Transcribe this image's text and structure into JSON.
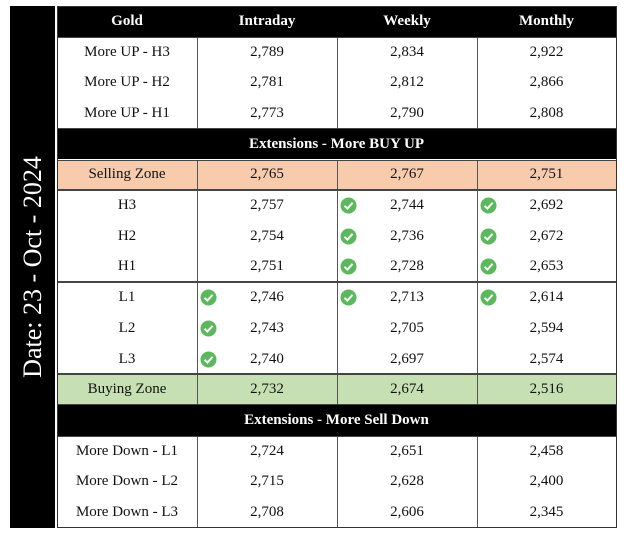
{
  "side_label": "Date: 23 - Oct - 2024",
  "header": [
    "Gold",
    "Intraday",
    "Weekly",
    "Monthly"
  ],
  "blocks": [
    {
      "rows": [
        {
          "label": "More UP - H3",
          "values": [
            "2,789",
            "2,834",
            "2,922"
          ],
          "checks": [
            false,
            false,
            false
          ]
        },
        {
          "label": "More UP - H2",
          "values": [
            "2,781",
            "2,812",
            "2,866"
          ],
          "checks": [
            false,
            false,
            false
          ]
        },
        {
          "label": "More UP - H1",
          "values": [
            "2,773",
            "2,790",
            "2,808"
          ],
          "checks": [
            false,
            false,
            false
          ]
        }
      ]
    },
    {
      "heading": "Extensions - More BUY UP"
    },
    {
      "rows": [
        {
          "label": "Selling Zone",
          "values": [
            "2,765",
            "2,767",
            "2,751"
          ],
          "checks": [
            false,
            false,
            false
          ],
          "color": "#f8cbad"
        }
      ]
    },
    {
      "rows": [
        {
          "label": "H3",
          "values": [
            "2,757",
            "2,744",
            "2,692"
          ],
          "checks": [
            false,
            true,
            true
          ]
        },
        {
          "label": "H2",
          "values": [
            "2,754",
            "2,736",
            "2,672"
          ],
          "checks": [
            false,
            true,
            true
          ]
        },
        {
          "label": "H1",
          "values": [
            "2,751",
            "2,728",
            "2,653"
          ],
          "checks": [
            false,
            true,
            true
          ]
        }
      ]
    },
    {
      "rows": [
        {
          "label": "L1",
          "values": [
            "2,746",
            "2,713",
            "2,614"
          ],
          "checks": [
            true,
            true,
            true
          ]
        },
        {
          "label": "L2",
          "values": [
            "2,743",
            "2,705",
            "2,594"
          ],
          "checks": [
            true,
            false,
            false
          ]
        },
        {
          "label": "L3",
          "values": [
            "2,740",
            "2,697",
            "2,574"
          ],
          "checks": [
            true,
            false,
            false
          ]
        }
      ]
    },
    {
      "rows": [
        {
          "label": "Buying Zone",
          "values": [
            "2,732",
            "2,674",
            "2,516"
          ],
          "checks": [
            false,
            false,
            false
          ],
          "color": "#c6e0b4"
        }
      ]
    },
    {
      "heading": "Extensions - More Sell Down"
    },
    {
      "rows": [
        {
          "label": "More Down - L1",
          "values": [
            "2,724",
            "2,651",
            "2,458"
          ],
          "checks": [
            false,
            false,
            false
          ]
        },
        {
          "label": "More Down - L2",
          "values": [
            "2,715",
            "2,628",
            "2,400"
          ],
          "checks": [
            false,
            false,
            false
          ]
        },
        {
          "label": "More Down - L3",
          "values": [
            "2,708",
            "2,606",
            "2,345"
          ],
          "checks": [
            false,
            false,
            false
          ]
        }
      ]
    }
  ]
}
